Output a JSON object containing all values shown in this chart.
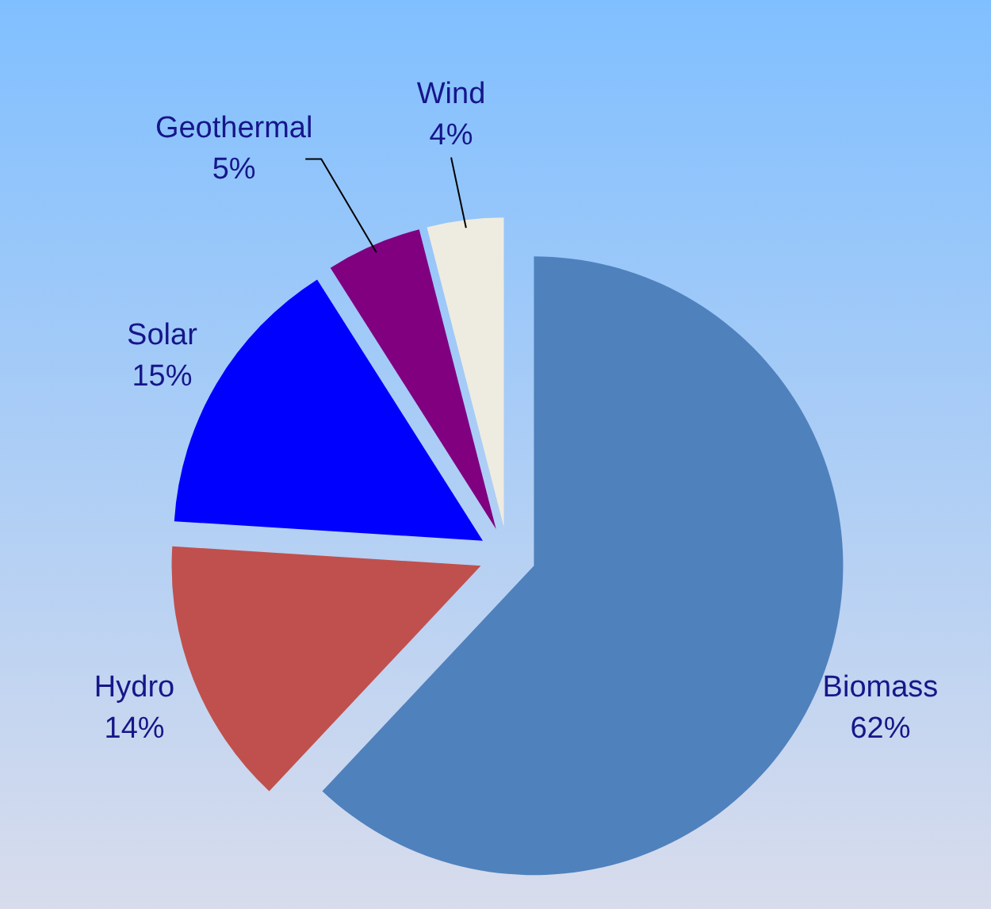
{
  "chart_data": {
    "type": "pie",
    "categories": [
      "Biomass",
      "Hydro",
      "Solar",
      "Geothermal",
      "Wind"
    ],
    "values": [
      62,
      14,
      15,
      5,
      4
    ],
    "value_labels": [
      "62%",
      "14%",
      "15%",
      "5%",
      "4%"
    ],
    "colors": [
      "#4f81bd",
      "#c0504d",
      "#0000ff",
      "#800080",
      "#eeece1"
    ]
  }
}
